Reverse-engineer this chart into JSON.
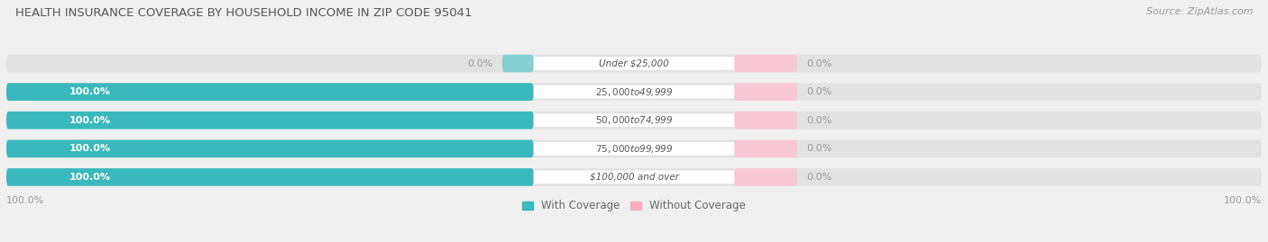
{
  "title": "HEALTH INSURANCE COVERAGE BY HOUSEHOLD INCOME IN ZIP CODE 95041",
  "source": "Source: ZipAtlas.com",
  "categories": [
    "Under $25,000",
    "$25,000 to $49,999",
    "$50,000 to $74,999",
    "$75,000 to $99,999",
    "$100,000 and over"
  ],
  "with_coverage": [
    0.0,
    100.0,
    100.0,
    100.0,
    100.0
  ],
  "without_coverage": [
    0.0,
    0.0,
    0.0,
    0.0,
    0.0
  ],
  "teal_color": "#3ab8bb",
  "teal_light": "#85d0d2",
  "pink_color": "#f7afc0",
  "pink_light": "#f9c8d5",
  "label_color_inside": "#ffffff",
  "label_color_outside": "#999999",
  "bg_color": "#f0f0f0",
  "bar_bg_color": "#e2e2e2",
  "title_color": "#555555",
  "source_color": "#999999",
  "legend_teal": "#3ab8bb",
  "legend_pink": "#f7afc0",
  "axis_label_left": "100.0%",
  "axis_label_right": "100.0%",
  "bar_height": 0.62,
  "figsize": [
    14.06,
    2.69
  ],
  "dpi": 100
}
